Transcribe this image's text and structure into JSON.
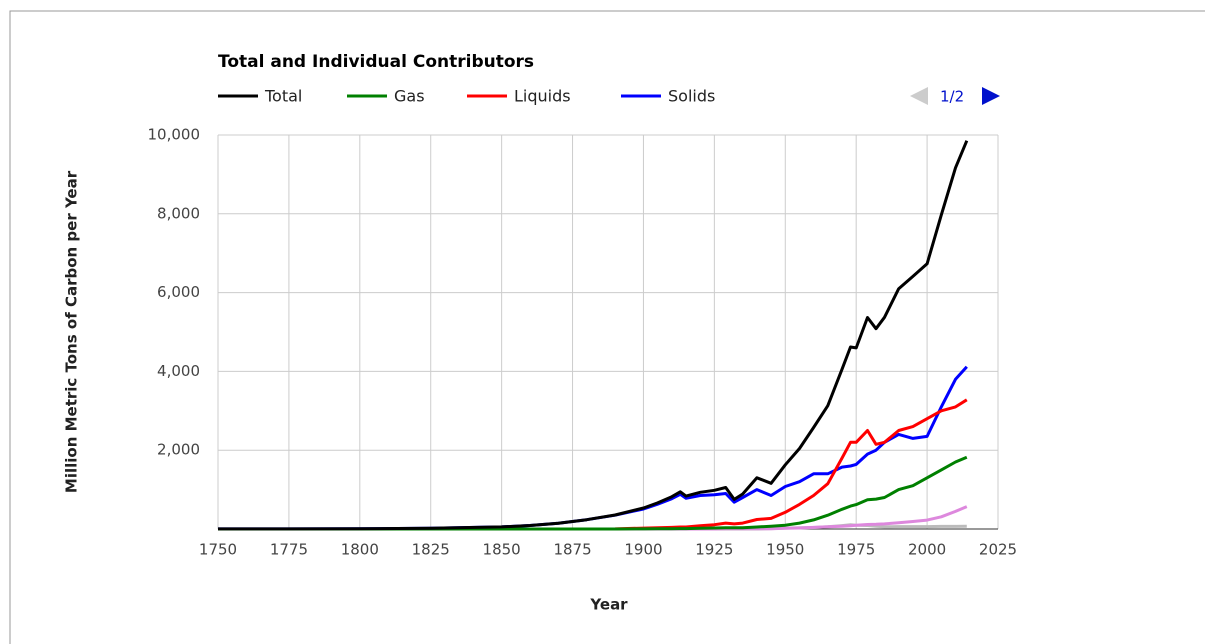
{
  "chart_data": {
    "type": "line",
    "title": "Total and Individual Contributors",
    "xlabel": "Year",
    "ylabel": "Million Metric Tons of Carbon per Year",
    "legend_page": "1/2",
    "x": [
      1750,
      1775,
      1800,
      1825,
      1850,
      1860,
      1870,
      1880,
      1890,
      1900,
      1905,
      1910,
      1913,
      1915,
      1920,
      1925,
      1929,
      1932,
      1935,
      1940,
      1945,
      1950,
      1955,
      1960,
      1965,
      1970,
      1973,
      1975,
      1979,
      1982,
      1985,
      1990,
      1995,
      2000,
      2005,
      2010,
      2014
    ],
    "series": [
      {
        "name": "Total",
        "color": "#000000",
        "values": [
          3,
          3,
          8,
          17,
          54,
          90,
          147,
          236,
          356,
          534,
          663,
          819,
          943,
          836,
          932,
          981,
          1053,
          750,
          888,
          1299,
          1160,
          1630,
          2043,
          2577,
          3130,
          4053,
          4620,
          4596,
          5369,
          5085,
          5372,
          6098,
          6411,
          6731,
          7972,
          9167,
          9855
        ]
      },
      {
        "name": "Gas",
        "color": "#008000",
        "values": [
          0,
          0,
          0,
          0,
          0,
          0,
          0,
          0,
          1,
          3,
          5,
          8,
          10,
          10,
          20,
          25,
          30,
          30,
          30,
          50,
          70,
          97,
          150,
          230,
          350,
          500,
          580,
          620,
          740,
          760,
          800,
          1000,
          1100,
          1300,
          1500,
          1700,
          1823
        ]
      },
      {
        "name": "Liquids",
        "color": "#ff0000",
        "values": [
          0,
          0,
          0,
          0,
          0,
          0,
          0,
          1,
          3,
          23,
          30,
          40,
          50,
          50,
          80,
          110,
          150,
          130,
          150,
          240,
          270,
          423,
          625,
          850,
          1150,
          1800,
          2200,
          2200,
          2500,
          2150,
          2200,
          2500,
          2600,
          2800,
          3000,
          3100,
          3280
        ]
      },
      {
        "name": "Solids",
        "color": "#0000ff",
        "values": [
          3,
          3,
          8,
          17,
          54,
          90,
          147,
          236,
          350,
          507,
          630,
          770,
          880,
          780,
          850,
          870,
          900,
          680,
          800,
          1000,
          850,
          1078,
          1200,
          1400,
          1400,
          1570,
          1600,
          1640,
          1900,
          2000,
          2200,
          2400,
          2300,
          2350,
          3100,
          3800,
          4117
        ]
      },
      {
        "color": "#dd88dd",
        "values": [
          0,
          0,
          0,
          0,
          0,
          0,
          0,
          0,
          0,
          0,
          0,
          0,
          0,
          0,
          0,
          0,
          5,
          4,
          6,
          8,
          6,
          18,
          25,
          40,
          55,
          70,
          85,
          95,
          115,
          120,
          130,
          157,
          190,
          226,
          310,
          446,
          568
        ]
      },
      {
        "color": "#bbbbbb",
        "values": [
          0,
          0,
          0,
          0,
          0,
          0,
          0,
          0,
          0,
          0,
          0,
          0,
          0,
          0,
          0,
          0,
          0,
          0,
          0,
          0,
          10,
          23,
          31,
          39,
          55,
          87,
          110,
          96,
          90,
          70,
          55,
          60,
          62,
          61,
          66,
          66,
          68
        ]
      }
    ],
    "xlim": [
      1750,
      2025
    ],
    "xticks": [
      1750,
      1775,
      1800,
      1825,
      1850,
      1875,
      1900,
      1925,
      1950,
      1975,
      2000,
      2025
    ],
    "ylim": [
      0,
      10000
    ],
    "yticks": [
      {
        "value": 2000,
        "label": "2,000"
      },
      {
        "value": 4000,
        "label": "4,000"
      },
      {
        "value": 6000,
        "label": "6,000"
      },
      {
        "value": 8000,
        "label": "8,000"
      },
      {
        "value": 10000,
        "label": "10,000"
      }
    ],
    "grid": true
  }
}
